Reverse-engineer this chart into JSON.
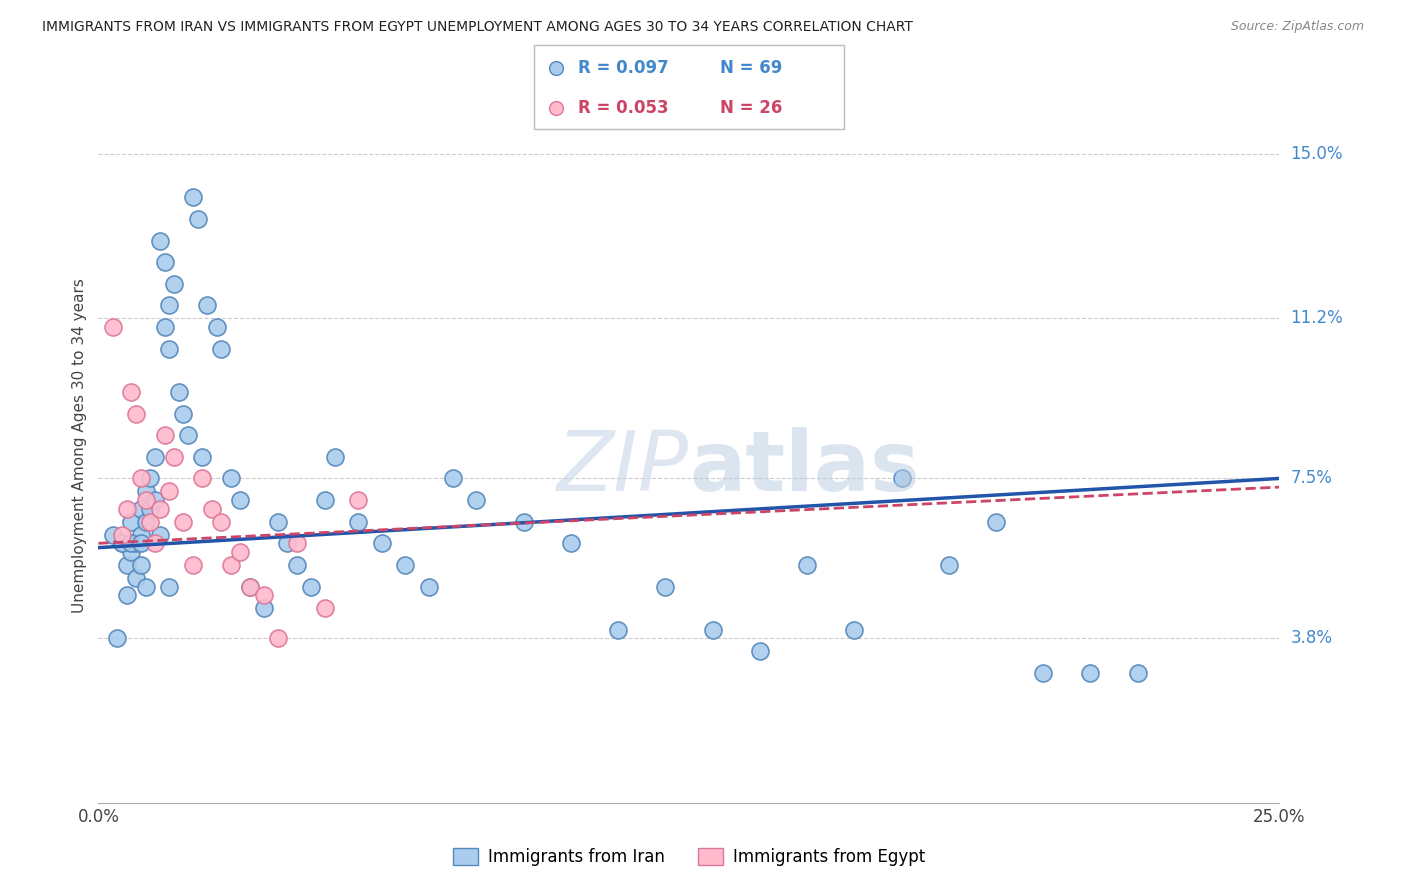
{
  "title": "IMMIGRANTS FROM IRAN VS IMMIGRANTS FROM EGYPT UNEMPLOYMENT AMONG AGES 30 TO 34 YEARS CORRELATION CHART",
  "source": "Source: ZipAtlas.com",
  "ylabel": "Unemployment Among Ages 30 to 34 years",
  "ytick_labels": [
    "15.0%",
    "11.2%",
    "7.5%",
    "3.8%"
  ],
  "ytick_values": [
    0.15,
    0.112,
    0.075,
    0.038
  ],
  "xlim": [
    0.0,
    0.25
  ],
  "ylim": [
    0.0,
    0.165
  ],
  "iran_R": "0.097",
  "iran_N": "69",
  "egypt_R": "0.053",
  "egypt_N": "26",
  "iran_color": "#AACCEE",
  "iran_edge_color": "#5588BB",
  "egypt_color": "#FFBBCC",
  "egypt_edge_color": "#DD7799",
  "iran_line_color": "#2255AA",
  "egypt_line_color": "#CC4466",
  "iran_x": [
    0.004,
    0.005,
    0.006,
    0.006,
    0.007,
    0.007,
    0.008,
    0.008,
    0.009,
    0.009,
    0.009,
    0.01,
    0.01,
    0.01,
    0.011,
    0.011,
    0.012,
    0.012,
    0.013,
    0.013,
    0.014,
    0.014,
    0.015,
    0.015,
    0.016,
    0.017,
    0.018,
    0.019,
    0.02,
    0.021,
    0.022,
    0.023,
    0.025,
    0.026,
    0.028,
    0.03,
    0.032,
    0.035,
    0.038,
    0.04,
    0.042,
    0.045,
    0.048,
    0.05,
    0.055,
    0.06,
    0.065,
    0.07,
    0.075,
    0.08,
    0.09,
    0.1,
    0.11,
    0.12,
    0.13,
    0.14,
    0.15,
    0.16,
    0.17,
    0.18,
    0.19,
    0.2,
    0.21,
    0.22,
    0.003,
    0.005,
    0.007,
    0.009,
    0.015
  ],
  "iran_y": [
    0.038,
    0.06,
    0.055,
    0.048,
    0.065,
    0.058,
    0.06,
    0.052,
    0.068,
    0.062,
    0.055,
    0.072,
    0.065,
    0.05,
    0.075,
    0.068,
    0.08,
    0.07,
    0.062,
    0.13,
    0.125,
    0.11,
    0.105,
    0.115,
    0.12,
    0.095,
    0.09,
    0.085,
    0.14,
    0.135,
    0.08,
    0.115,
    0.11,
    0.105,
    0.075,
    0.07,
    0.05,
    0.045,
    0.065,
    0.06,
    0.055,
    0.05,
    0.07,
    0.08,
    0.065,
    0.06,
    0.055,
    0.05,
    0.075,
    0.07,
    0.065,
    0.06,
    0.04,
    0.05,
    0.04,
    0.035,
    0.055,
    0.04,
    0.075,
    0.055,
    0.065,
    0.03,
    0.03,
    0.03,
    0.062,
    0.06,
    0.06,
    0.06,
    0.05
  ],
  "egypt_x": [
    0.003,
    0.005,
    0.006,
    0.007,
    0.008,
    0.009,
    0.01,
    0.011,
    0.012,
    0.013,
    0.014,
    0.015,
    0.016,
    0.018,
    0.02,
    0.022,
    0.024,
    0.026,
    0.028,
    0.03,
    0.032,
    0.035,
    0.038,
    0.042,
    0.048,
    0.055
  ],
  "egypt_y": [
    0.11,
    0.062,
    0.068,
    0.095,
    0.09,
    0.075,
    0.07,
    0.065,
    0.06,
    0.068,
    0.085,
    0.072,
    0.08,
    0.065,
    0.055,
    0.075,
    0.068,
    0.065,
    0.055,
    0.058,
    0.05,
    0.048,
    0.038,
    0.06,
    0.045,
    0.07
  ],
  "iran_trend_x": [
    0.0,
    0.25
  ],
  "iran_trend_y": [
    0.059,
    0.075
  ],
  "egypt_trend_x": [
    0.0,
    0.25
  ],
  "egypt_trend_y": [
    0.06,
    0.073
  ]
}
